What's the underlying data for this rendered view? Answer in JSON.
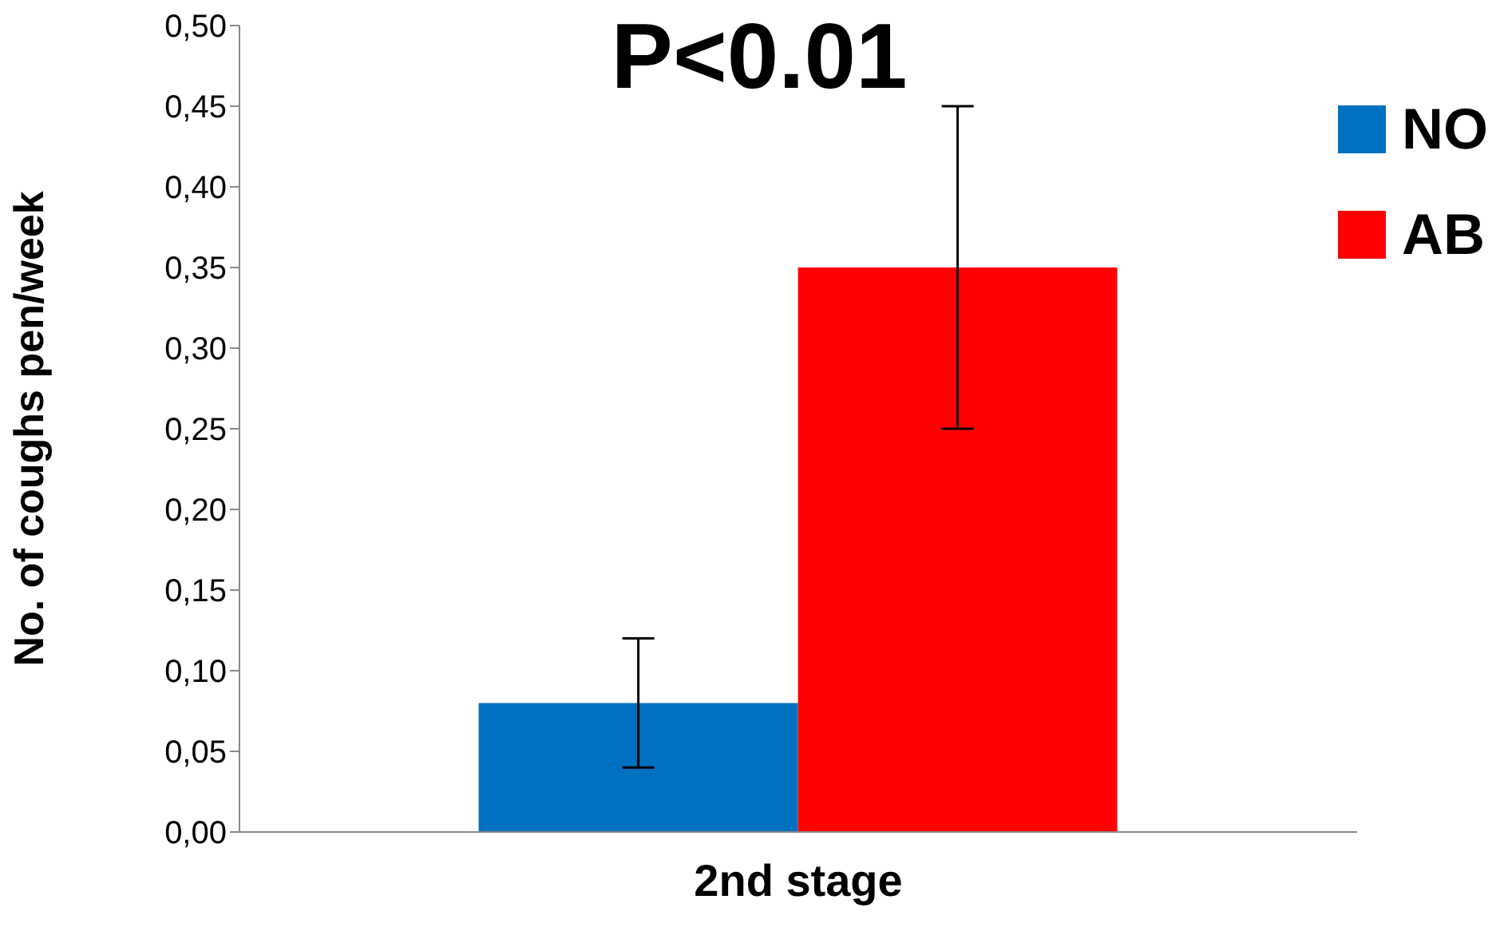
{
  "chart_data": {
    "type": "bar",
    "title": "P<0.01",
    "ylabel": "No. of coughs pen/week",
    "categories": [
      "2nd stage"
    ],
    "series": [
      {
        "name": "NO",
        "color": "#0070c0",
        "values": [
          0.08
        ],
        "errors": [
          0.04
        ]
      },
      {
        "name": "AB",
        "color": "#ff0000",
        "values": [
          0.35
        ],
        "errors": [
          0.1
        ]
      }
    ],
    "ylim": [
      0,
      0.5
    ],
    "yticks": [
      {
        "value": 0,
        "label": "0,00"
      },
      {
        "value": 0.05,
        "label": "0,05"
      },
      {
        "value": 0.1,
        "label": "0,10"
      },
      {
        "value": 0.15,
        "label": "0,15"
      },
      {
        "value": 0.2,
        "label": "0,20"
      },
      {
        "value": 0.25,
        "label": "0,25"
      },
      {
        "value": 0.3,
        "label": "0,30"
      },
      {
        "value": 0.35,
        "label": "0,35"
      },
      {
        "value": 0.4,
        "label": "0,40"
      },
      {
        "value": 0.45,
        "label": "0,45"
      },
      {
        "value": 0.5,
        "label": "0,50"
      }
    ],
    "grid": false,
    "legend": "top right"
  }
}
